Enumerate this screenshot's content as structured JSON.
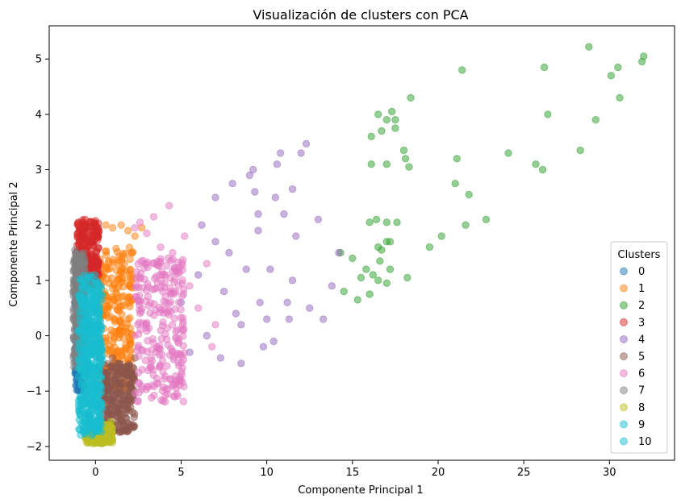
{
  "chart_data": {
    "type": "scatter",
    "title": "Visualización de clusters con PCA",
    "xlabel": "Componente Principal 1",
    "ylabel": "Componente Principal 2",
    "xlim": [
      -2.7,
      33.8
    ],
    "ylim": [
      -2.25,
      5.6
    ],
    "xticks": [
      0,
      5,
      10,
      15,
      20,
      25,
      30
    ],
    "yticks": [
      -2,
      -1,
      0,
      1,
      2,
      3,
      4,
      5
    ],
    "grid": false,
    "legend": {
      "title": "Clusters",
      "position": "lower-right"
    },
    "marker_alpha": 0.5,
    "series": [
      {
        "name": "0",
        "color": "#1f77b4",
        "region": {
          "x": [
            -1.2,
            -0.6
          ],
          "y": [
            -1.0,
            1.4
          ]
        },
        "points": [
          [
            -1.0,
            -0.9
          ],
          [
            -0.9,
            -0.2
          ],
          [
            -1.1,
            0.5
          ],
          [
            -0.8,
            1.0
          ],
          [
            -1.0,
            1.3
          ]
        ]
      },
      {
        "name": "1",
        "color": "#ff7f0e",
        "region": {
          "x": [
            0.2,
            2.2
          ],
          "y": [
            -1.0,
            1.6
          ]
        },
        "points": [
          [
            0.6,
            2.0
          ],
          [
            1.0,
            1.95
          ],
          [
            1.5,
            2.0
          ],
          [
            1.9,
            1.9
          ],
          [
            2.3,
            1.8
          ],
          [
            2.7,
            1.95
          ],
          [
            2.1,
            1.5
          ],
          [
            0.5,
            -0.6
          ],
          [
            1.2,
            -0.9
          ],
          [
            1.9,
            -0.5
          ]
        ]
      },
      {
        "name": "2",
        "color": "#2ca02c",
        "points": [
          [
            14.5,
            0.8
          ],
          [
            15.0,
            1.4
          ],
          [
            15.3,
            0.65
          ],
          [
            15.5,
            1.05
          ],
          [
            15.8,
            1.2
          ],
          [
            16.0,
            0.75
          ],
          [
            16.2,
            1.1
          ],
          [
            16.5,
            1.0
          ],
          [
            16.6,
            1.35
          ],
          [
            17.0,
            0.95
          ],
          [
            17.2,
            1.2
          ],
          [
            14.3,
            1.5
          ],
          [
            16.0,
            2.05
          ],
          [
            16.4,
            2.1
          ],
          [
            16.5,
            1.6
          ],
          [
            16.7,
            1.55
          ],
          [
            17.0,
            1.7
          ],
          [
            17.2,
            1.7
          ],
          [
            17.0,
            2.05
          ],
          [
            17.6,
            2.05
          ],
          [
            18.2,
            1.05
          ],
          [
            19.5,
            1.6
          ],
          [
            20.2,
            1.8
          ],
          [
            21.0,
            2.75
          ],
          [
            21.6,
            2.0
          ],
          [
            21.8,
            2.55
          ],
          [
            22.8,
            2.1
          ],
          [
            16.1,
            3.1
          ],
          [
            16.1,
            3.6
          ],
          [
            16.5,
            4.0
          ],
          [
            16.7,
            3.7
          ],
          [
            17.0,
            3.9
          ],
          [
            17.0,
            3.1
          ],
          [
            17.3,
            4.05
          ],
          [
            17.5,
            3.9
          ],
          [
            17.5,
            3.75
          ],
          [
            18.0,
            3.35
          ],
          [
            18.1,
            3.2
          ],
          [
            18.3,
            3.05
          ],
          [
            18.4,
            4.3
          ],
          [
            21.1,
            3.2
          ],
          [
            21.4,
            4.8
          ],
          [
            24.1,
            3.3
          ],
          [
            25.7,
            3.1
          ],
          [
            26.1,
            3.0
          ],
          [
            26.2,
            4.85
          ],
          [
            26.4,
            4.0
          ],
          [
            28.3,
            3.35
          ],
          [
            28.8,
            5.22
          ],
          [
            29.2,
            3.9
          ],
          [
            30.1,
            4.7
          ],
          [
            30.5,
            4.85
          ],
          [
            30.6,
            4.3
          ],
          [
            31.9,
            4.95
          ],
          [
            32.0,
            5.05
          ]
        ]
      },
      {
        "name": "3",
        "color": "#d62728",
        "region": {
          "x": [
            -1.1,
            0.2
          ],
          "y": [
            0.9,
            2.1
          ]
        },
        "points": [
          [
            -1.0,
            2.05
          ],
          [
            -0.6,
            2.1
          ],
          [
            -0.1,
            2.05
          ],
          [
            0.2,
            1.9
          ],
          [
            -0.8,
            1.5
          ]
        ]
      },
      {
        "name": "4",
        "color": "#9467bd",
        "points": [
          [
            5.0,
            0.6
          ],
          [
            5.5,
            -0.3
          ],
          [
            6.0,
            1.1
          ],
          [
            6.2,
            2.0
          ],
          [
            6.5,
            0.0
          ],
          [
            7.0,
            1.7
          ],
          [
            7.0,
            2.5
          ],
          [
            7.3,
            -0.4
          ],
          [
            7.5,
            0.8
          ],
          [
            7.8,
            1.5
          ],
          [
            8.0,
            2.75
          ],
          [
            8.2,
            0.4
          ],
          [
            8.5,
            -0.5
          ],
          [
            8.8,
            1.2
          ],
          [
            9.0,
            2.9
          ],
          [
            9.2,
            3.0
          ],
          [
            9.3,
            2.6
          ],
          [
            9.5,
            1.9
          ],
          [
            9.5,
            2.2
          ],
          [
            9.8,
            -0.2
          ],
          [
            10.0,
            0.3
          ],
          [
            10.2,
            1.2
          ],
          [
            10.5,
            2.5
          ],
          [
            10.6,
            3.1
          ],
          [
            10.8,
            3.3
          ],
          [
            11.0,
            2.2
          ],
          [
            11.2,
            0.6
          ],
          [
            11.5,
            1.0
          ],
          [
            11.5,
            2.65
          ],
          [
            11.7,
            1.8
          ],
          [
            12.0,
            3.3
          ],
          [
            12.3,
            3.47
          ],
          [
            12.5,
            0.5
          ],
          [
            13.0,
            2.1
          ],
          [
            13.3,
            0.3
          ],
          [
            13.8,
            0.9
          ],
          [
            14.2,
            1.5
          ],
          [
            9.6,
            0.6
          ],
          [
            8.5,
            0.2
          ],
          [
            10.4,
            -0.1
          ],
          [
            11.3,
            0.3
          ]
        ]
      },
      {
        "name": "5",
        "color": "#8c564b",
        "region": {
          "x": [
            0.4,
            2.3
          ],
          "y": [
            -1.75,
            -0.5
          ]
        },
        "points": [
          [
            1.5,
            -1.7
          ],
          [
            0.4,
            -1.5
          ],
          [
            2.3,
            -0.4
          ],
          [
            1.0,
            -0.4
          ]
        ]
      },
      {
        "name": "6",
        "color": "#e377c2",
        "region": {
          "x": [
            2.3,
            5.2
          ],
          "y": [
            -1.2,
            1.4
          ]
        },
        "points": [
          [
            2.3,
            1.95
          ],
          [
            2.6,
            2.05
          ],
          [
            3.0,
            1.85
          ],
          [
            3.4,
            2.15
          ],
          [
            4.3,
            2.35
          ],
          [
            3.8,
            1.6
          ],
          [
            4.5,
            1.5
          ],
          [
            5.5,
            0.9
          ],
          [
            6.0,
            0.5
          ],
          [
            6.5,
            1.3
          ],
          [
            7.0,
            0.2
          ],
          [
            5.0,
            -0.8
          ],
          [
            5.2,
            1.8
          ],
          [
            6.8,
            -0.2
          ]
        ]
      },
      {
        "name": "7",
        "color": "#7f7f7f",
        "region": {
          "x": [
            -1.3,
            -0.6
          ],
          "y": [
            -0.6,
            1.5
          ]
        },
        "points": [
          [
            -1.2,
            1.55
          ],
          [
            -1.3,
            0.8
          ]
        ]
      },
      {
        "name": "8",
        "color": "#bcbd22",
        "region": {
          "x": [
            -0.6,
            1.0
          ],
          "y": [
            -1.95,
            -1.6
          ]
        },
        "points": [
          [
            -0.3,
            -1.9
          ],
          [
            0.2,
            -1.85
          ],
          [
            0.6,
            -1.8
          ],
          [
            0.9,
            -1.55
          ]
        ]
      },
      {
        "name": "9",
        "color": "#17becf",
        "region": {
          "x": [
            -1.0,
            0.3
          ],
          "y": [
            -1.8,
            1.1
          ]
        },
        "points": [
          [
            -0.9,
            -1.7
          ],
          [
            -0.4,
            1.05
          ],
          [
            0.1,
            0.8
          ]
        ]
      },
      {
        "name": "10",
        "color": "#17becf",
        "region": {
          "x": [
            -0.7,
            0.4
          ],
          "y": [
            -1.75,
            0.9
          ]
        },
        "points": [
          [
            -0.2,
            -1.6
          ],
          [
            0.3,
            -1.2
          ]
        ]
      }
    ]
  }
}
